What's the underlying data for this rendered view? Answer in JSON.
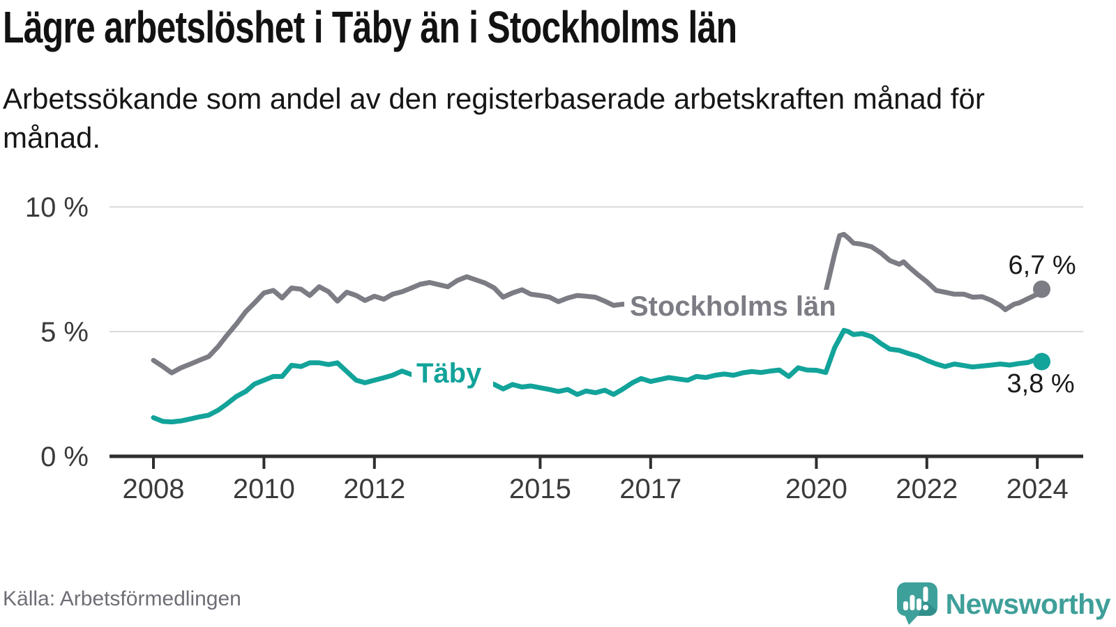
{
  "title": "Lägre arbetslöshet i Täby än i Stockholms län",
  "subtitle": "Arbetssökande som andel av den registerbaserade arbetskraften månad för månad.",
  "source": "Källa: Arbetsförmedlingen",
  "brand": {
    "name": "Newsworthy",
    "icon": "newsworthy-speech-bubble-bar-chart-icon",
    "color": "#3F9F99"
  },
  "colors": {
    "taby_line": "#12A39A",
    "stockholm_line": "#7C7C84",
    "grid": "#DBDBDB",
    "axis": "#2E2E2E",
    "tick_text": "#3A3A3A",
    "end_label_text": "#1A1A1A"
  },
  "chart_data": {
    "type": "line",
    "unit": "%",
    "ylim": [
      0,
      10
    ],
    "grid": "horizontal",
    "yticks": [
      {
        "value": 10,
        "label": "10 %"
      },
      {
        "value": 5,
        "label": "5 %"
      },
      {
        "value": 0,
        "label": "0 %"
      }
    ],
    "xticks": [
      {
        "value": 2008,
        "label": "2008"
      },
      {
        "value": 2010,
        "label": "2010"
      },
      {
        "value": 2012,
        "label": "2012"
      },
      {
        "value": 2015,
        "label": "2015"
      },
      {
        "value": 2017,
        "label": "2017"
      },
      {
        "value": 2020,
        "label": "2020"
      },
      {
        "value": 2022,
        "label": "2022"
      },
      {
        "value": 2024,
        "label": "2024"
      }
    ],
    "series": [
      {
        "name": "Stockholms län",
        "color": "#7C7C84",
        "end_label": "6,7 %",
        "end_value": 6.7,
        "points": [
          [
            2008.0,
            3.85
          ],
          [
            2008.17,
            3.6
          ],
          [
            2008.33,
            3.35
          ],
          [
            2008.5,
            3.55
          ],
          [
            2008.67,
            3.7
          ],
          [
            2008.83,
            3.85
          ],
          [
            2009.0,
            4.0
          ],
          [
            2009.17,
            4.4
          ],
          [
            2009.33,
            4.85
          ],
          [
            2009.5,
            5.3
          ],
          [
            2009.67,
            5.8
          ],
          [
            2009.83,
            6.15
          ],
          [
            2010.0,
            6.55
          ],
          [
            2010.17,
            6.65
          ],
          [
            2010.33,
            6.35
          ],
          [
            2010.5,
            6.75
          ],
          [
            2010.67,
            6.7
          ],
          [
            2010.83,
            6.45
          ],
          [
            2011.0,
            6.8
          ],
          [
            2011.17,
            6.6
          ],
          [
            2011.33,
            6.22
          ],
          [
            2011.5,
            6.58
          ],
          [
            2011.67,
            6.45
          ],
          [
            2011.83,
            6.25
          ],
          [
            2012.0,
            6.42
          ],
          [
            2012.17,
            6.3
          ],
          [
            2012.33,
            6.5
          ],
          [
            2012.5,
            6.6
          ],
          [
            2012.67,
            6.75
          ],
          [
            2012.83,
            6.9
          ],
          [
            2013.0,
            6.97
          ],
          [
            2013.17,
            6.88
          ],
          [
            2013.33,
            6.8
          ],
          [
            2013.5,
            7.05
          ],
          [
            2013.67,
            7.2
          ],
          [
            2013.83,
            7.08
          ],
          [
            2014.0,
            6.95
          ],
          [
            2014.17,
            6.75
          ],
          [
            2014.33,
            6.38
          ],
          [
            2014.5,
            6.55
          ],
          [
            2014.67,
            6.68
          ],
          [
            2014.83,
            6.5
          ],
          [
            2015.0,
            6.45
          ],
          [
            2015.17,
            6.38
          ],
          [
            2015.33,
            6.2
          ],
          [
            2015.5,
            6.35
          ],
          [
            2015.67,
            6.45
          ],
          [
            2015.83,
            6.42
          ],
          [
            2016.0,
            6.38
          ],
          [
            2016.17,
            6.22
          ],
          [
            2016.33,
            6.05
          ],
          [
            2016.5,
            6.1
          ],
          [
            2016.67,
            6.05
          ],
          [
            2016.83,
            6.15
          ],
          [
            2017.0,
            6.1
          ],
          [
            2017.25,
            6.02
          ],
          [
            2017.5,
            5.98
          ],
          [
            2017.75,
            5.95
          ],
          [
            2018.0,
            6.0
          ],
          [
            2018.25,
            5.95
          ],
          [
            2018.5,
            6.0
          ],
          [
            2018.75,
            5.98
          ],
          [
            2019.0,
            6.0
          ],
          [
            2019.25,
            5.95
          ],
          [
            2019.5,
            5.92
          ],
          [
            2019.75,
            6.0
          ],
          [
            2020.0,
            6.1
          ],
          [
            2020.17,
            6.6
          ],
          [
            2020.33,
            8.1
          ],
          [
            2020.42,
            8.85
          ],
          [
            2020.5,
            8.9
          ],
          [
            2020.58,
            8.75
          ],
          [
            2020.67,
            8.55
          ],
          [
            2020.83,
            8.5
          ],
          [
            2021.0,
            8.4
          ],
          [
            2021.17,
            8.15
          ],
          [
            2021.33,
            7.85
          ],
          [
            2021.5,
            7.7
          ],
          [
            2021.58,
            7.8
          ],
          [
            2021.67,
            7.6
          ],
          [
            2021.83,
            7.3
          ],
          [
            2022.0,
            7.0
          ],
          [
            2022.17,
            6.65
          ],
          [
            2022.33,
            6.58
          ],
          [
            2022.5,
            6.5
          ],
          [
            2022.67,
            6.5
          ],
          [
            2022.83,
            6.38
          ],
          [
            2023.0,
            6.4
          ],
          [
            2023.17,
            6.25
          ],
          [
            2023.33,
            6.05
          ],
          [
            2023.42,
            5.88
          ],
          [
            2023.58,
            6.1
          ],
          [
            2023.67,
            6.15
          ],
          [
            2023.83,
            6.32
          ],
          [
            2024.0,
            6.5
          ],
          [
            2024.08,
            6.7
          ]
        ]
      },
      {
        "name": "Täby",
        "color": "#12A39A",
        "end_label": "3,8 %",
        "end_value": 3.8,
        "points": [
          [
            2008.0,
            1.55
          ],
          [
            2008.17,
            1.4
          ],
          [
            2008.33,
            1.38
          ],
          [
            2008.5,
            1.42
          ],
          [
            2008.67,
            1.5
          ],
          [
            2008.83,
            1.58
          ],
          [
            2009.0,
            1.65
          ],
          [
            2009.17,
            1.85
          ],
          [
            2009.33,
            2.1
          ],
          [
            2009.5,
            2.4
          ],
          [
            2009.67,
            2.6
          ],
          [
            2009.83,
            2.9
          ],
          [
            2010.0,
            3.05
          ],
          [
            2010.17,
            3.2
          ],
          [
            2010.33,
            3.2
          ],
          [
            2010.5,
            3.65
          ],
          [
            2010.67,
            3.6
          ],
          [
            2010.83,
            3.75
          ],
          [
            2011.0,
            3.75
          ],
          [
            2011.17,
            3.68
          ],
          [
            2011.33,
            3.75
          ],
          [
            2011.5,
            3.4
          ],
          [
            2011.67,
            3.05
          ],
          [
            2011.83,
            2.95
          ],
          [
            2012.0,
            3.05
          ],
          [
            2012.17,
            3.15
          ],
          [
            2012.33,
            3.25
          ],
          [
            2012.5,
            3.42
          ],
          [
            2012.67,
            3.28
          ],
          [
            2012.83,
            3.2
          ],
          [
            2013.0,
            3.25
          ],
          [
            2013.17,
            3.35
          ],
          [
            2013.33,
            3.28
          ],
          [
            2013.5,
            3.35
          ],
          [
            2013.67,
            3.25
          ],
          [
            2013.83,
            3.3
          ],
          [
            2014.0,
            3.05
          ],
          [
            2014.17,
            2.88
          ],
          [
            2014.33,
            2.7
          ],
          [
            2014.5,
            2.88
          ],
          [
            2014.67,
            2.78
          ],
          [
            2014.83,
            2.82
          ],
          [
            2015.0,
            2.75
          ],
          [
            2015.17,
            2.68
          ],
          [
            2015.33,
            2.6
          ],
          [
            2015.5,
            2.68
          ],
          [
            2015.67,
            2.48
          ],
          [
            2015.83,
            2.62
          ],
          [
            2016.0,
            2.55
          ],
          [
            2016.17,
            2.65
          ],
          [
            2016.33,
            2.48
          ],
          [
            2016.5,
            2.7
          ],
          [
            2016.67,
            2.95
          ],
          [
            2016.83,
            3.12
          ],
          [
            2017.0,
            3.0
          ],
          [
            2017.17,
            3.08
          ],
          [
            2017.33,
            3.16
          ],
          [
            2017.5,
            3.1
          ],
          [
            2017.67,
            3.05
          ],
          [
            2017.83,
            3.2
          ],
          [
            2018.0,
            3.16
          ],
          [
            2018.17,
            3.25
          ],
          [
            2018.33,
            3.3
          ],
          [
            2018.5,
            3.25
          ],
          [
            2018.67,
            3.35
          ],
          [
            2018.83,
            3.4
          ],
          [
            2019.0,
            3.36
          ],
          [
            2019.17,
            3.42
          ],
          [
            2019.33,
            3.46
          ],
          [
            2019.5,
            3.2
          ],
          [
            2019.67,
            3.55
          ],
          [
            2019.83,
            3.46
          ],
          [
            2020.0,
            3.45
          ],
          [
            2020.17,
            3.36
          ],
          [
            2020.33,
            4.35
          ],
          [
            2020.5,
            5.05
          ],
          [
            2020.58,
            5.0
          ],
          [
            2020.67,
            4.88
          ],
          [
            2020.83,
            4.92
          ],
          [
            2021.0,
            4.8
          ],
          [
            2021.17,
            4.52
          ],
          [
            2021.33,
            4.3
          ],
          [
            2021.5,
            4.25
          ],
          [
            2021.67,
            4.12
          ],
          [
            2021.83,
            4.02
          ],
          [
            2022.0,
            3.85
          ],
          [
            2022.17,
            3.7
          ],
          [
            2022.33,
            3.6
          ],
          [
            2022.5,
            3.7
          ],
          [
            2022.67,
            3.64
          ],
          [
            2022.83,
            3.58
          ],
          [
            2023.0,
            3.62
          ],
          [
            2023.17,
            3.66
          ],
          [
            2023.33,
            3.7
          ],
          [
            2023.5,
            3.66
          ],
          [
            2023.67,
            3.72
          ],
          [
            2023.83,
            3.76
          ],
          [
            2024.0,
            3.9
          ],
          [
            2024.08,
            3.8
          ]
        ]
      }
    ]
  }
}
